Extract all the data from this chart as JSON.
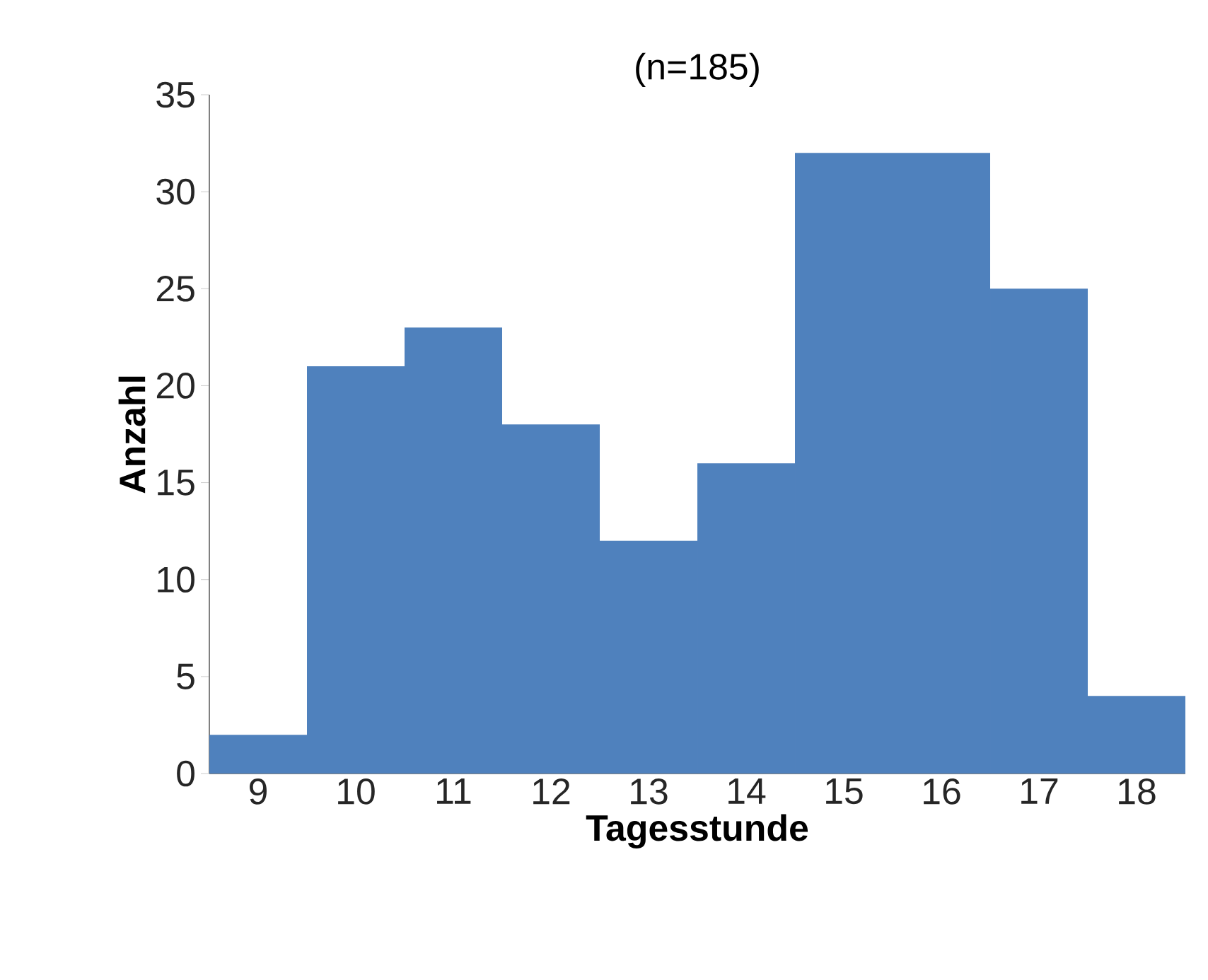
{
  "chart_data": {
    "type": "bar",
    "title": "(n=185)",
    "xlabel": "Tagesstunde",
    "ylabel": "Anzahl",
    "categories": [
      "9",
      "10",
      "11",
      "12",
      "13",
      "14",
      "15",
      "16",
      "17",
      "18"
    ],
    "values": [
      2,
      21,
      23,
      18,
      12,
      16,
      32,
      32,
      25,
      4
    ],
    "color": "#4f81bd",
    "ylim": [
      0,
      35
    ],
    "yticks": [
      0,
      5,
      10,
      15,
      20,
      25,
      30,
      35
    ]
  }
}
